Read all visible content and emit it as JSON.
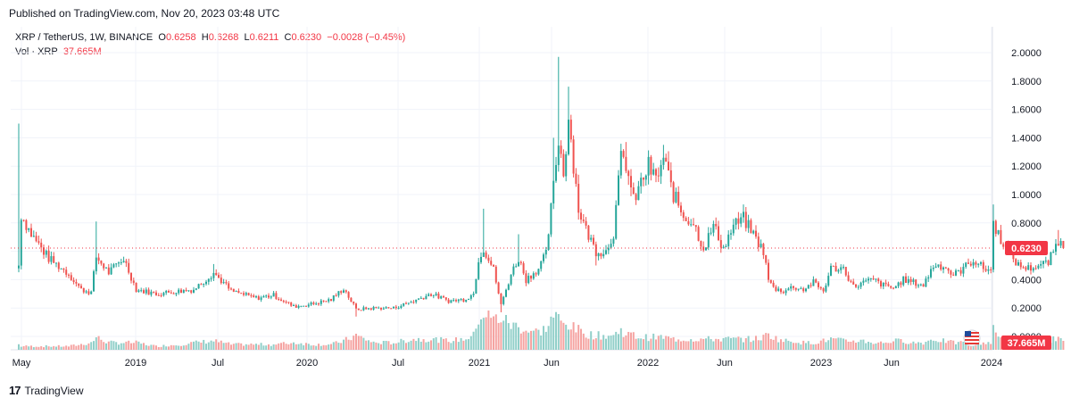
{
  "header": {
    "published": "Published on TradingView.com, Nov 20, 2023 03:48 UTC"
  },
  "legend": {
    "symbol": "XRP / TetherUS, 1W, BINANCE",
    "o_label": "O",
    "o_value": "0.6258",
    "h_label": "H",
    "h_value": "0.6268",
    "l_label": "L",
    "l_value": "0.6211",
    "c_label": "C",
    "c_value": "0.6230",
    "change": "−0.0028 (−0.45%)",
    "vol_label": "Vol · XRP",
    "vol_value": "37.665M"
  },
  "footer": {
    "brand": "TradingView",
    "logo": "17"
  },
  "colors": {
    "up": "#26a69a",
    "down": "#ef5350",
    "last_price": "#f23645",
    "up_vol": "#91cfc9",
    "down_vol": "#f5a3a1"
  },
  "chart_data": {
    "type": "candlestick",
    "symbol": "XRP / TetherUS",
    "interval": "1W",
    "exchange": "BINANCE",
    "y_ticks": [
      "2.0000",
      "1.8000",
      "1.6000",
      "1.4000",
      "1.2000",
      "1.0000",
      "0.8000",
      "0.6000",
      "0.4000",
      "0.2000",
      "0.0000"
    ],
    "y_range": [
      0,
      2.0
    ],
    "x_ticks": [
      "May",
      "2019",
      "Jul",
      "2020",
      "Jul",
      "2021",
      "Jun",
      "2022",
      "Jun",
      "2023",
      "Jun",
      "2024"
    ],
    "last_price": "0.6230",
    "last_volume": "37.665M",
    "grid": true,
    "anchors": [
      {
        "t": 0,
        "p": 0.5,
        "h": 1.5,
        "v": 0.15
      },
      {
        "t": 1,
        "p": 0.86,
        "v": 0.1
      },
      {
        "t": 5,
        "p": 0.72,
        "v": 0.1
      },
      {
        "t": 12,
        "p": 0.55,
        "v": 0.1
      },
      {
        "t": 20,
        "p": 0.44,
        "v": 0.1
      },
      {
        "t": 25,
        "p": 0.33,
        "v": 0.15
      },
      {
        "t": 29,
        "p": 0.31,
        "v": 0.2
      },
      {
        "t": 31,
        "p": 0.56,
        "h": 0.81,
        "v": 0.35
      },
      {
        "t": 36,
        "p": 0.45,
        "v": 0.2
      },
      {
        "t": 42,
        "p": 0.55,
        "v": 0.2
      },
      {
        "t": 47,
        "p": 0.33,
        "v": 0.2
      },
      {
        "t": 55,
        "p": 0.3,
        "v": 0.1
      },
      {
        "t": 65,
        "p": 0.32,
        "v": 0.15
      },
      {
        "t": 70,
        "p": 0.33,
        "v": 0.2
      },
      {
        "t": 78,
        "p": 0.45,
        "h": 0.51,
        "v": 0.25
      },
      {
        "t": 85,
        "p": 0.32,
        "v": 0.15
      },
      {
        "t": 95,
        "p": 0.27,
        "v": 0.15
      },
      {
        "t": 102,
        "p": 0.29,
        "v": 0.15
      },
      {
        "t": 110,
        "p": 0.21,
        "v": 0.2
      },
      {
        "t": 118,
        "p": 0.23,
        "v": 0.15
      },
      {
        "t": 125,
        "p": 0.26,
        "v": 0.15
      },
      {
        "t": 130,
        "p": 0.34,
        "v": 0.25
      },
      {
        "t": 135,
        "p": 0.19,
        "l": 0.14,
        "v": 0.4
      },
      {
        "t": 142,
        "p": 0.2,
        "v": 0.2
      },
      {
        "t": 150,
        "p": 0.2,
        "v": 0.2
      },
      {
        "t": 158,
        "p": 0.25,
        "v": 0.3
      },
      {
        "t": 165,
        "p": 0.3,
        "v": 0.3
      },
      {
        "t": 172,
        "p": 0.25,
        "v": 0.25
      },
      {
        "t": 178,
        "p": 0.26,
        "v": 0.3
      },
      {
        "t": 182,
        "p": 0.3,
        "v": 0.4
      },
      {
        "t": 184,
        "p": 0.55,
        "v": 0.9
      },
      {
        "t": 186,
        "p": 0.62,
        "h": 0.9,
        "v": 1.0
      },
      {
        "t": 190,
        "p": 0.47,
        "v": 0.85
      },
      {
        "t": 193,
        "p": 0.22,
        "l": 0.17,
        "v": 0.9
      },
      {
        "t": 197,
        "p": 0.44,
        "v": 0.7
      },
      {
        "t": 200,
        "p": 0.55,
        "h": 0.72,
        "v": 0.65
      },
      {
        "t": 203,
        "p": 0.4,
        "v": 0.55
      },
      {
        "t": 208,
        "p": 0.48,
        "v": 0.5
      },
      {
        "t": 211,
        "p": 0.58,
        "v": 0.6
      },
      {
        "t": 214,
        "p": 1.05,
        "h": 1.4,
        "v": 0.95
      },
      {
        "t": 216,
        "p": 1.4,
        "h": 1.97,
        "v": 0.85
      },
      {
        "t": 218,
        "p": 1.15,
        "v": 0.7
      },
      {
        "t": 220,
        "p": 1.55,
        "h": 1.76,
        "v": 0.75
      },
      {
        "t": 222,
        "p": 1.22,
        "v": 0.6
      },
      {
        "t": 224,
        "p": 0.9,
        "v": 0.55
      },
      {
        "t": 227,
        "p": 0.75,
        "v": 0.45
      },
      {
        "t": 231,
        "p": 0.6,
        "l": 0.5,
        "v": 0.4
      },
      {
        "t": 235,
        "p": 0.6,
        "v": 0.4
      },
      {
        "t": 238,
        "p": 0.73,
        "v": 0.4
      },
      {
        "t": 241,
        "p": 1.25,
        "v": 0.55
      },
      {
        "t": 243,
        "p": 1.22,
        "h": 1.37,
        "v": 0.45
      },
      {
        "t": 246,
        "p": 0.95,
        "v": 0.4
      },
      {
        "t": 249,
        "p": 1.08,
        "v": 0.35
      },
      {
        "t": 252,
        "p": 1.2,
        "v": 0.35
      },
      {
        "t": 255,
        "p": 1.1,
        "v": 0.35
      },
      {
        "t": 258,
        "p": 1.25,
        "h": 1.35,
        "v": 0.35
      },
      {
        "t": 262,
        "p": 1.0,
        "v": 0.3
      },
      {
        "t": 266,
        "p": 0.85,
        "v": 0.3
      },
      {
        "t": 270,
        "p": 0.8,
        "v": 0.3
      },
      {
        "t": 274,
        "p": 0.62,
        "v": 0.3
      },
      {
        "t": 278,
        "p": 0.78,
        "v": 0.3
      },
      {
        "t": 282,
        "p": 0.62,
        "v": 0.3
      },
      {
        "t": 286,
        "p": 0.78,
        "v": 0.3
      },
      {
        "t": 290,
        "p": 0.83,
        "h": 0.93,
        "v": 0.3
      },
      {
        "t": 294,
        "p": 0.72,
        "v": 0.3
      },
      {
        "t": 298,
        "p": 0.6,
        "v": 0.35
      },
      {
        "t": 300,
        "p": 0.4,
        "v": 0.45
      },
      {
        "t": 302,
        "p": 0.34,
        "v": 0.35
      },
      {
        "t": 306,
        "p": 0.32,
        "v": 0.25
      },
      {
        "t": 310,
        "p": 0.35,
        "v": 0.25
      },
      {
        "t": 314,
        "p": 0.33,
        "v": 0.2
      },
      {
        "t": 318,
        "p": 0.38,
        "v": 0.2
      },
      {
        "t": 322,
        "p": 0.32,
        "v": 0.25
      },
      {
        "t": 325,
        "p": 0.48,
        "v": 0.3
      },
      {
        "t": 330,
        "p": 0.48,
        "v": 0.25
      },
      {
        "t": 334,
        "p": 0.35,
        "v": 0.25
      },
      {
        "t": 338,
        "p": 0.38,
        "v": 0.25
      },
      {
        "t": 342,
        "p": 0.4,
        "v": 0.2
      },
      {
        "t": 346,
        "p": 0.36,
        "v": 0.2
      },
      {
        "t": 350,
        "p": 0.34,
        "v": 0.25
      },
      {
        "t": 354,
        "p": 0.4,
        "v": 0.25
      },
      {
        "t": 358,
        "p": 0.38,
        "v": 0.2
      },
      {
        "t": 362,
        "p": 0.36,
        "v": 0.2
      },
      {
        "t": 366,
        "p": 0.5,
        "v": 0.3
      },
      {
        "t": 370,
        "p": 0.5,
        "v": 0.25
      },
      {
        "t": 374,
        "p": 0.43,
        "v": 0.2
      },
      {
        "t": 378,
        "p": 0.48,
        "v": 0.2
      },
      {
        "t": 382,
        "p": 0.54,
        "v": 0.2
      },
      {
        "t": 386,
        "p": 0.48,
        "v": 0.2
      },
      {
        "t": 389,
        "p": 0.47,
        "v": 0.2
      },
      {
        "t": 390,
        "p": 0.8,
        "h": 0.93,
        "v": 0.55
      },
      {
        "t": 392,
        "p": 0.72,
        "v": 0.35
      },
      {
        "t": 396,
        "p": 0.6,
        "v": 0.25
      },
      {
        "t": 400,
        "p": 0.5,
        "v": 0.25
      },
      {
        "t": 404,
        "p": 0.48,
        "v": 0.2
      },
      {
        "t": 408,
        "p": 0.5,
        "v": 0.2
      },
      {
        "t": 412,
        "p": 0.52,
        "v": 0.25
      },
      {
        "t": 414,
        "p": 0.6,
        "v": 0.3
      },
      {
        "t": 416,
        "p": 0.68,
        "h": 0.75,
        "v": 0.35
      },
      {
        "t": 418,
        "p": 0.623,
        "v": 0.25
      }
    ]
  }
}
